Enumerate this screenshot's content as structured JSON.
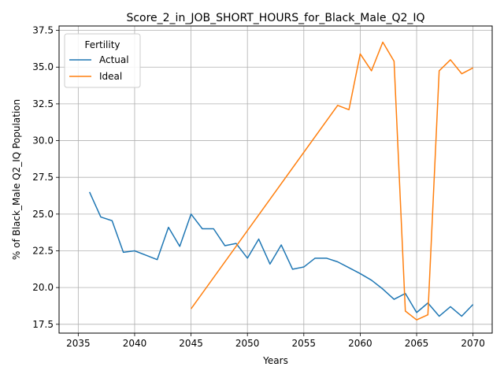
{
  "chart_data": {
    "type": "line",
    "title": "Score_2_in_JOB_SHORT_HOURS_for_Black_Male_Q2_IQ",
    "xlabel": "Years",
    "ylabel": "% of Black_Male Q2_IQ Population",
    "xlim": [
      2033.3,
      2071.7
    ],
    "ylim": [
      16.9,
      37.8
    ],
    "xticks": [
      2035,
      2040,
      2045,
      2050,
      2055,
      2060,
      2065,
      2070
    ],
    "yticks": [
      17.5,
      20.0,
      22.5,
      25.0,
      27.5,
      30.0,
      32.5,
      35.0,
      37.5
    ],
    "xtick_labels": [
      "2035",
      "2040",
      "2045",
      "2050",
      "2055",
      "2060",
      "2065",
      "2070"
    ],
    "ytick_labels": [
      "17.5",
      "20.0",
      "22.5",
      "25.0",
      "27.5",
      "30.0",
      "32.5",
      "35.0",
      "37.5"
    ],
    "grid": true,
    "legend": {
      "title": "Fertility",
      "placement": "top-left"
    },
    "series": [
      {
        "name": "Actual",
        "color": "#1f77b4",
        "x": [
          2036,
          2037,
          2038,
          2039,
          2040,
          2041,
          2042,
          2043,
          2044,
          2045,
          2046,
          2047,
          2048,
          2049,
          2050,
          2051,
          2052,
          2053,
          2054,
          2055,
          2056,
          2057,
          2058,
          2059,
          2060,
          2061,
          2062,
          2063,
          2064,
          2065,
          2066,
          2067,
          2068,
          2069,
          2070
        ],
        "y": [
          26.5,
          24.8,
          24.55,
          22.4,
          22.5,
          22.2,
          21.9,
          24.1,
          22.8,
          25.0,
          24.0,
          24.0,
          22.85,
          23.0,
          22.0,
          23.3,
          21.6,
          22.9,
          21.25,
          21.4,
          22.0,
          22.0,
          21.75,
          21.35,
          20.95,
          20.5,
          19.9,
          19.2,
          19.6,
          18.3,
          18.95,
          18.05,
          18.7,
          18.05,
          18.85
        ]
      },
      {
        "name": "Ideal",
        "color": "#ff7f0e",
        "x": [
          2045,
          2058,
          2059,
          2060,
          2061,
          2062,
          2063,
          2064,
          2065,
          2066,
          2067,
          2068,
          2069,
          2070
        ],
        "y": [
          18.55,
          32.4,
          32.1,
          35.9,
          34.75,
          36.7,
          35.4,
          18.4,
          17.8,
          18.15,
          34.75,
          35.5,
          34.55,
          34.95
        ]
      }
    ]
  }
}
